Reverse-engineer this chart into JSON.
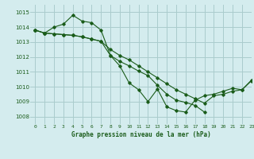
{
  "title": "Graphe pression niveau de la mer (hPa)",
  "bg_color": "#d4ecee",
  "grid_color": "#aacccc",
  "line_color": "#1a5c1a",
  "xlim": [
    -0.5,
    23
  ],
  "ylim": [
    1007.5,
    1015.5
  ],
  "yticks": [
    1008,
    1009,
    1010,
    1011,
    1012,
    1013,
    1014,
    1015
  ],
  "xticks": [
    0,
    1,
    2,
    3,
    4,
    5,
    6,
    7,
    8,
    9,
    10,
    11,
    12,
    13,
    14,
    15,
    16,
    17,
    18,
    19,
    20,
    21,
    22,
    23
  ],
  "series": [
    {
      "x": [
        0,
        1,
        2,
        3,
        4,
        5,
        6,
        7,
        8,
        9,
        10,
        11,
        12,
        13,
        14,
        15,
        16,
        17,
        18,
        19,
        20,
        21,
        22,
        23
      ],
      "y": [
        1013.8,
        1013.6,
        1014.0,
        1014.2,
        1014.8,
        1014.4,
        1014.3,
        1013.8,
        1012.1,
        1011.4,
        1010.25,
        1009.8,
        1009.0,
        1009.85,
        1008.65,
        1008.4,
        1008.3,
        1009.1,
        1009.4,
        1009.5,
        1009.7,
        1009.9,
        1009.8,
        1010.4
      ]
    },
    {
      "x": [
        0,
        1,
        2,
        3,
        4,
        5,
        6,
        7,
        8,
        9,
        10,
        11,
        12,
        13,
        14,
        15,
        16,
        17,
        18
      ],
      "y": [
        1013.8,
        1013.6,
        1013.55,
        1013.5,
        1013.45,
        1013.35,
        1013.2,
        1013.05,
        1012.1,
        1011.7,
        1011.4,
        1011.05,
        1010.75,
        1010.1,
        1009.5,
        1009.1,
        1008.95,
        1008.75,
        1008.3
      ]
    },
    {
      "x": [
        0,
        1,
        2,
        3,
        4,
        5,
        6,
        7,
        8,
        9,
        10,
        11,
        12,
        13,
        14,
        15,
        16,
        17,
        18,
        19,
        20,
        21,
        22,
        23
      ],
      "y": [
        1013.8,
        1013.6,
        1013.55,
        1013.5,
        1013.45,
        1013.35,
        1013.2,
        1013.05,
        1012.5,
        1012.1,
        1011.8,
        1011.4,
        1011.0,
        1010.6,
        1010.2,
        1009.8,
        1009.5,
        1009.2,
        1008.9,
        1009.4,
        1009.5,
        1009.7,
        1009.8,
        1010.45
      ]
    }
  ]
}
